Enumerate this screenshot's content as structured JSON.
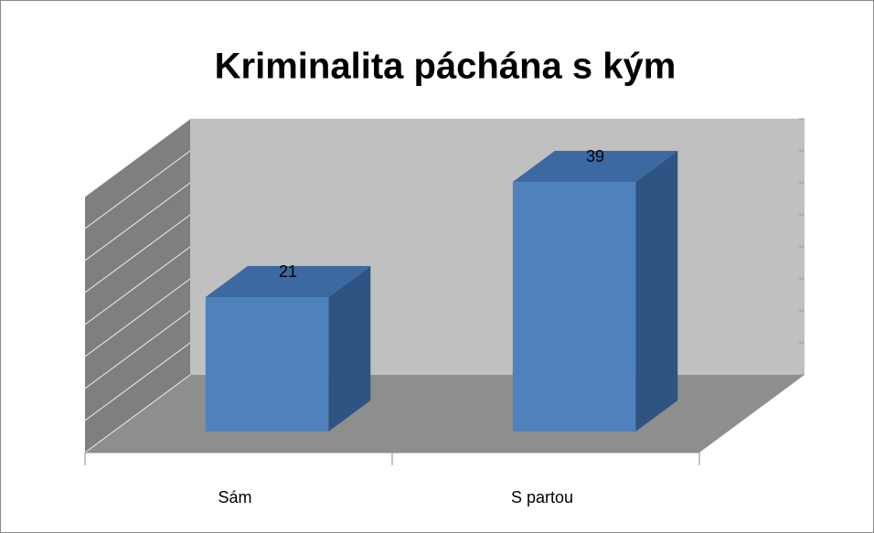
{
  "chart_data": {
    "type": "bar3d",
    "title": "Kriminalita páchána s kým",
    "categories": [
      "Sám",
      "S partou"
    ],
    "values": [
      21,
      39
    ],
    "color": "#4f81bd",
    "ylim": [
      0,
      40
    ],
    "yticks": [
      0,
      5,
      10,
      15,
      20,
      25,
      30,
      35,
      40
    ],
    "grid": true
  }
}
